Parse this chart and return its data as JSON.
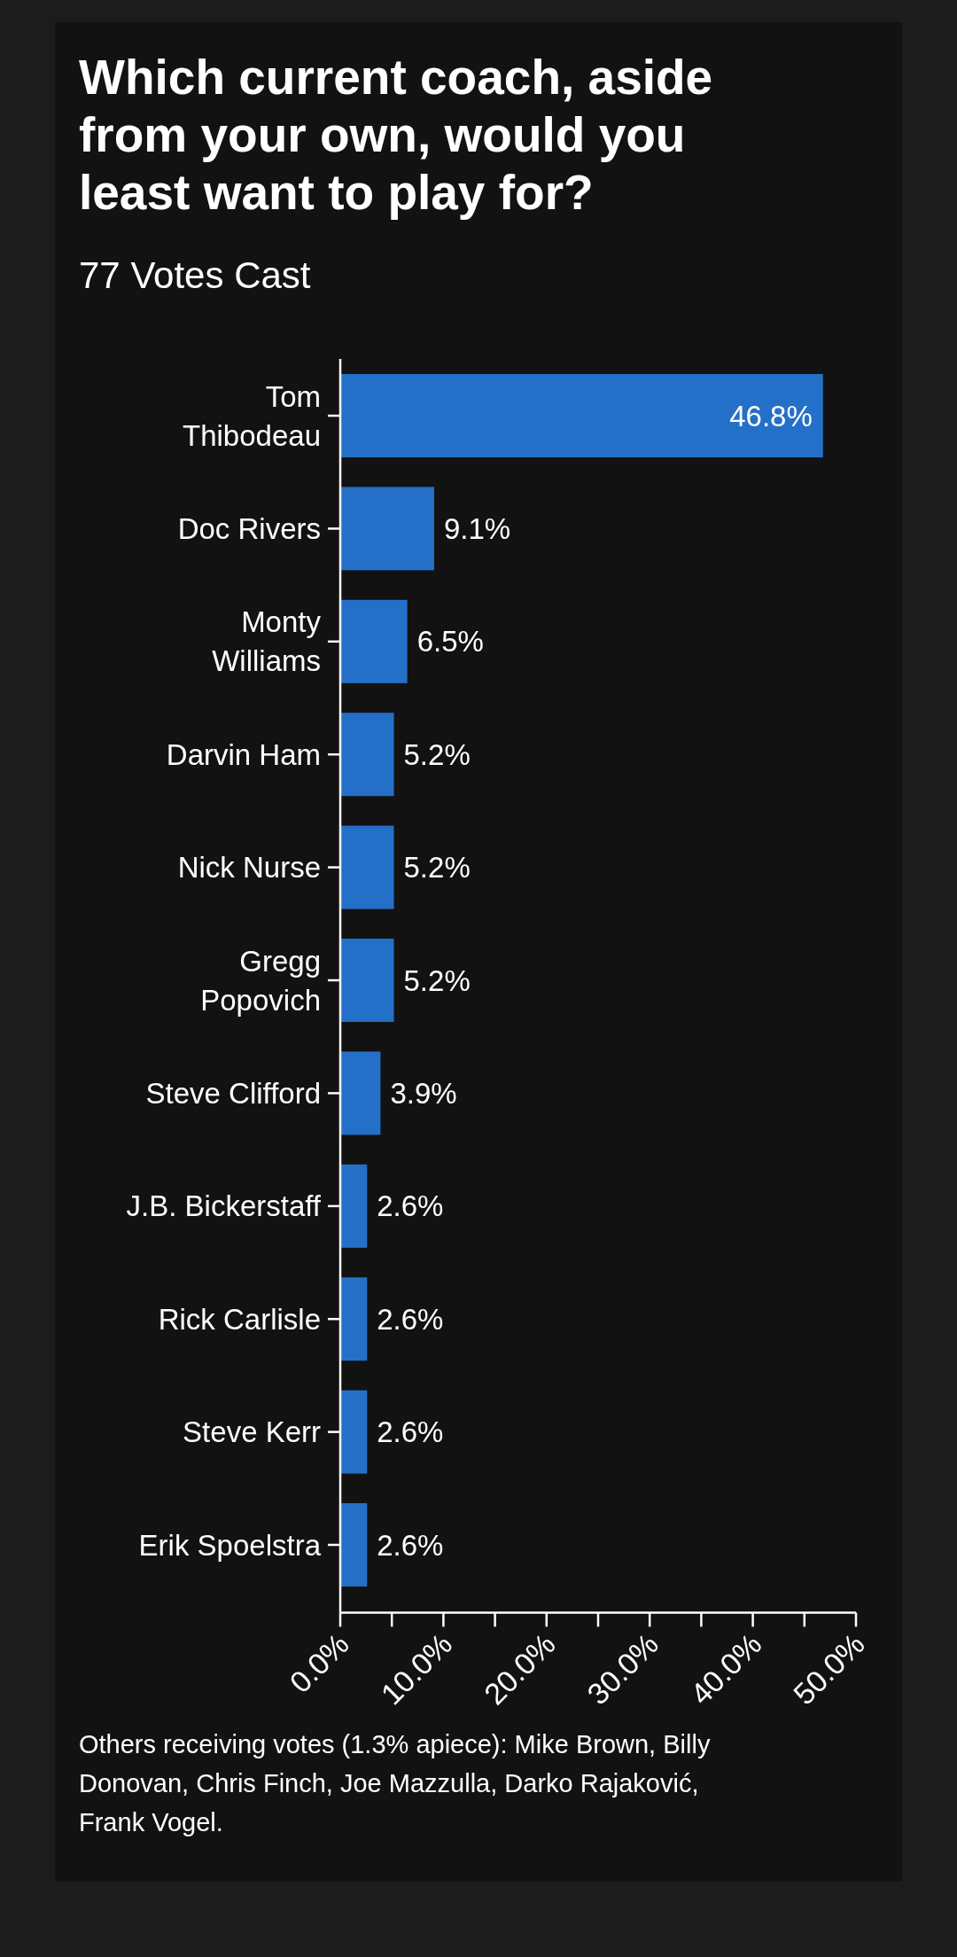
{
  "chart_data": {
    "type": "bar",
    "orientation": "horizontal",
    "title": "Which current coach, aside from your own, would you least want to play for?",
    "subtitle": "77 Votes Cast",
    "categories": [
      "Tom\nThibodeau",
      "Doc Rivers",
      "Monty\nWilliams",
      "Darvin Ham",
      "Nick Nurse",
      "Gregg\nPopovich",
      "Steve Clifford",
      "J.B. Bickerstaff",
      "Rick Carlisle",
      "Steve Kerr",
      "Erik Spoelstra"
    ],
    "values": [
      46.8,
      9.1,
      6.5,
      5.2,
      5.2,
      5.2,
      3.9,
      2.6,
      2.6,
      2.6,
      2.6
    ],
    "value_labels": [
      "46.8%",
      "9.1%",
      "6.5%",
      "5.2%",
      "5.2%",
      "5.2%",
      "3.9%",
      "2.6%",
      "2.6%",
      "2.6%",
      "2.6%"
    ],
    "color": "#2470c8",
    "xlim": [
      0,
      50
    ],
    "xticks": [
      {
        "value": 0,
        "label": "0.0%"
      },
      {
        "value": 5,
        "label": null
      },
      {
        "value": 10,
        "label": "10.0%"
      },
      {
        "value": 15,
        "label": null
      },
      {
        "value": 20,
        "label": "20.0%"
      },
      {
        "value": 25,
        "label": null
      },
      {
        "value": 30,
        "label": "30.0%"
      },
      {
        "value": 35,
        "label": null
      },
      {
        "value": 40,
        "label": "40.0%"
      },
      {
        "value": 45,
        "label": null
      },
      {
        "value": 50,
        "label": "50.0%"
      }
    ],
    "annotations": [
      "Others receiving votes (1.3% apiece): Mike Brown, Billy Donovan, Chris Finch, Joe Mazzulla, Darko Rajaković, Frank Vogel."
    ]
  }
}
